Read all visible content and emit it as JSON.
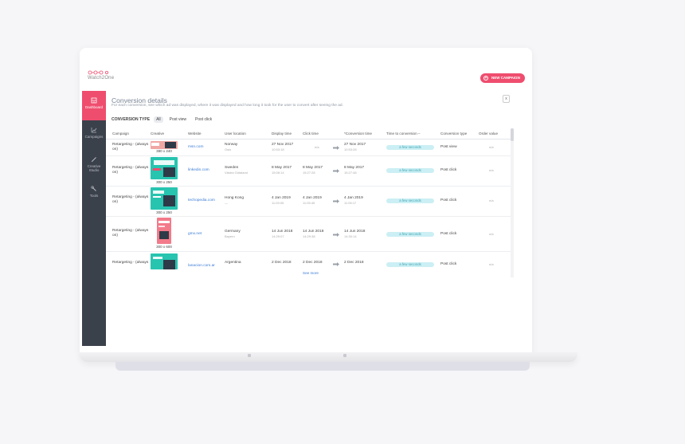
{
  "app": {
    "logo_text": "Watch2One"
  },
  "header": {
    "new_campaign_label": "NEW CAMPAIGN",
    "brand_color": "#ef4d6e"
  },
  "sidebar": {
    "items": [
      {
        "label": "Dashboard",
        "icon": "dashboard-icon",
        "active": true
      },
      {
        "label": "Campaigns",
        "icon": "chart-icon",
        "active": false
      },
      {
        "label": "Creative Studio",
        "icon": "pen-icon",
        "active": false
      },
      {
        "label": "Tools",
        "icon": "wrench-icon",
        "active": false
      }
    ]
  },
  "panel": {
    "title": "Conversion details",
    "subtitle": "For each conversion, see which ad was displayed, where it was displayed and how long it took for the user to convert after seeing the ad.",
    "close_label": "x"
  },
  "filters": {
    "label": "CONVERSION TYPE",
    "options": [
      "All",
      "Post view",
      "Post click"
    ],
    "selected": "All"
  },
  "table": {
    "columns": [
      "Campaign",
      "Creative",
      "Website",
      "User location",
      "Display time",
      "Click time",
      "*Conversion time",
      "Time to conversion –",
      "Conversion type",
      "Order value"
    ],
    "rows": [
      {
        "campaign": "Retargeting - (always on)",
        "creative_size": "380 x 240",
        "website": "msn.com",
        "country": "Norway",
        "region": "Oslo",
        "display_date": "27 Nov 2017",
        "display_time": "10:53:18",
        "click_date": "n/a",
        "click_time": "",
        "conv_date": "27 Nov 2017",
        "conv_time": "10:53:28",
        "ttc": "a few seconds",
        "conv_type": "Post view",
        "order_value": "n/a"
      },
      {
        "campaign": "Retargeting - (always on)",
        "creative_size": "300 x 250",
        "website": "linkedin.com",
        "country": "Sweden",
        "region": "Västra Götaland",
        "display_date": "8 May 2017",
        "display_time": "15:08:14",
        "click_date": "8 May 2017",
        "click_time": "15:27:28",
        "conv_date": "8 May 2017",
        "conv_time": "15:27:48",
        "ttc": "a few seconds",
        "conv_type": "Post click",
        "order_value": "n/a"
      },
      {
        "campaign": "Retargeting - (always on)",
        "creative_size": "300 x 250",
        "website": "techopedia.com",
        "country": "Hong Kong",
        "region": "—",
        "display_date": "4 Jan 2019",
        "display_time": "11:09:05",
        "click_date": "4 Jan 2019",
        "click_time": "11:05:45",
        "conv_date": "4 Jan 2019",
        "conv_time": "11:06:17",
        "ttc": "a few seconds",
        "conv_type": "Post click",
        "order_value": "n/a"
      },
      {
        "campaign": "Retargeting - (always on)",
        "creative_size": "300 x 600",
        "website": "gmx.net",
        "country": "Germany",
        "region": "Bayern",
        "display_date": "14 Jun 2018",
        "display_time": "14:29:07",
        "click_date": "14 Jun 2018",
        "click_time": "14:29:38",
        "conv_date": "14 Jun 2018",
        "conv_time": "14:30:14",
        "ttc": "a few seconds",
        "conv_type": "Post click",
        "order_value": "n/a"
      },
      {
        "campaign": "Retargeting - (always",
        "creative_size": "",
        "website": "lanacion.com.ar",
        "country": "Argentina",
        "region": "",
        "display_date": "2 Dec 2018",
        "display_time": "",
        "click_date": "2 Dec 2018",
        "click_time": "",
        "conv_date": "2 Dec 2018",
        "conv_time": "",
        "ttc": "a few seconds",
        "conv_type": "Post click",
        "order_value": "n/a"
      }
    ],
    "see_more": "See more"
  }
}
